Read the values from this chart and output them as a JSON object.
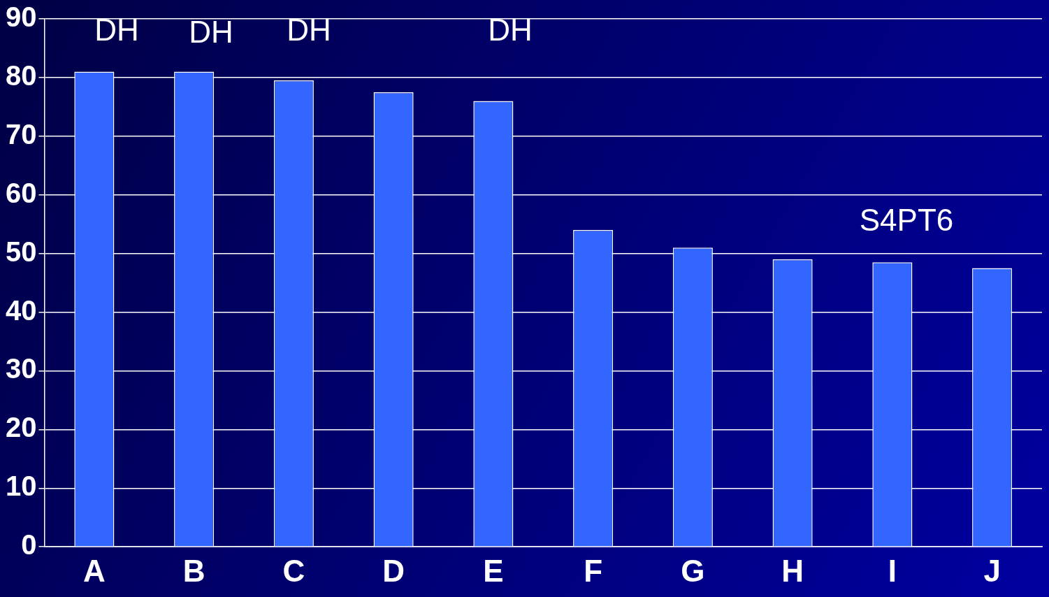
{
  "chart_data": {
    "type": "bar",
    "categories": [
      "A",
      "B",
      "C",
      "D",
      "E",
      "F",
      "G",
      "H",
      "I",
      "J"
    ],
    "values": [
      81,
      81,
      79.5,
      77.5,
      76,
      54,
      51,
      49,
      48.5,
      47.5
    ],
    "color": "#3366ff",
    "ylim": [
      0,
      90
    ],
    "yticks": [
      0,
      10,
      20,
      30,
      40,
      50,
      60,
      70,
      80,
      90
    ],
    "grid": "y",
    "legend": false,
    "annotations": [
      "DH",
      "DH",
      "DH",
      "DH",
      "S4PT6"
    ]
  }
}
